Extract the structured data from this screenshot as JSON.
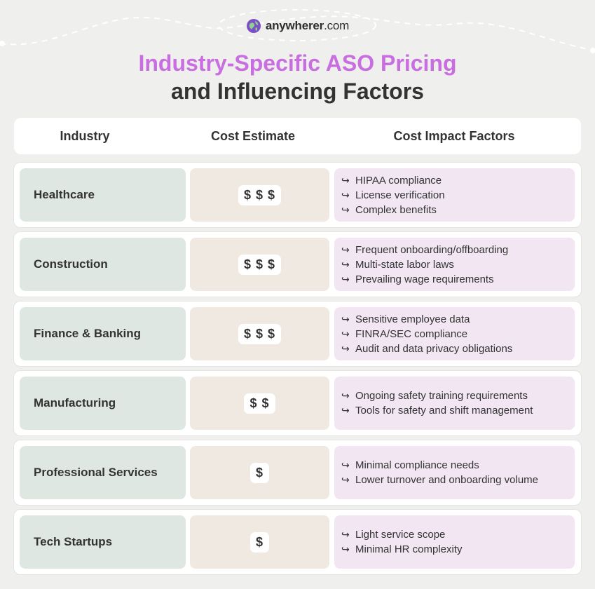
{
  "brand": {
    "name": "anywherer",
    "suffix": ".com",
    "logo_icon": "globe-icon"
  },
  "title": {
    "line1": "Industry-Specific ASO Pricing",
    "line2": "and Influencing Factors",
    "accent_color": "#c96ee0"
  },
  "table": {
    "headers": {
      "industry": "Industry",
      "cost": "Cost Estimate",
      "factors": "Cost Impact Factors"
    },
    "colors": {
      "industry_cell": "#dfe7e2",
      "cost_cell": "#efe9e2",
      "factors_cell": "#f1e6f1"
    },
    "arrow_icon": "↪",
    "rows": [
      {
        "industry": "Healthcare",
        "cost": "$ $ $",
        "factors": [
          "HIPAA compliance",
          "License verification",
          "Complex benefits"
        ]
      },
      {
        "industry": "Construction",
        "cost": "$ $ $",
        "factors": [
          "Frequent onboarding/offboarding",
          "Multi-state labor laws",
          "Prevailing wage requirements"
        ]
      },
      {
        "industry": "Finance & Banking",
        "cost": "$ $ $",
        "factors": [
          "Sensitive employee data",
          "FINRA/SEC compliance",
          "Audit and data privacy obligations"
        ]
      },
      {
        "industry": "Manufacturing",
        "cost": "$ $",
        "factors": [
          "Ongoing safety training requirements",
          "Tools for safety and shift management"
        ]
      },
      {
        "industry": "Professional Services",
        "cost": "$",
        "factors": [
          "Minimal compliance needs",
          "Lower turnover and onboarding volume"
        ]
      },
      {
        "industry": "Tech Startups",
        "cost": "$",
        "factors": [
          "Light service scope",
          "Minimal HR complexity"
        ]
      }
    ]
  }
}
